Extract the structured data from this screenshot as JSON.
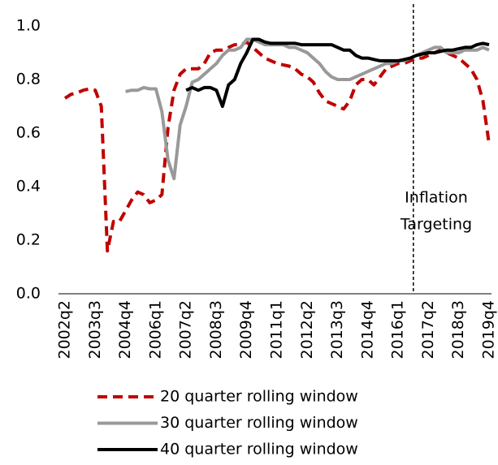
{
  "chart_data": {
    "type": "line",
    "categories": [
      "2002q2",
      null,
      null,
      null,
      null,
      "2003q3",
      null,
      null,
      null,
      null,
      "2004q4",
      null,
      null,
      null,
      null,
      "2006q1",
      null,
      null,
      null,
      null,
      "2007q2",
      null,
      null,
      null,
      null,
      "2008q3",
      null,
      null,
      null,
      null,
      "2009q4",
      null,
      null,
      null,
      null,
      "2011q1",
      null,
      null,
      null,
      null,
      "2012q2",
      null,
      null,
      null,
      null,
      "2013q3",
      null,
      null,
      null,
      null,
      "2014q4",
      null,
      null,
      null,
      null,
      "2016q1",
      null,
      null,
      null,
      null,
      "2017q2",
      null,
      null,
      null,
      null,
      "2018q3",
      null,
      null,
      null,
      null,
      "2019q4"
    ],
    "series": [
      {
        "name": "20 quarter rolling window",
        "color": "#c00000",
        "dashed": true,
        "values": [
          0.73,
          0.745,
          0.75,
          0.76,
          0.765,
          0.76,
          0.7,
          0.16,
          0.27,
          0.27,
          0.31,
          0.35,
          0.38,
          0.37,
          0.34,
          0.35,
          0.37,
          0.62,
          0.76,
          0.82,
          0.84,
          0.84,
          0.84,
          0.86,
          0.9,
          0.91,
          0.91,
          0.92,
          0.93,
          0.93,
          0.94,
          0.92,
          0.9,
          0.88,
          0.87,
          0.86,
          0.855,
          0.85,
          0.84,
          0.82,
          0.81,
          0.79,
          0.75,
          0.72,
          0.71,
          0.7,
          0.69,
          0.72,
          0.78,
          0.8,
          0.8,
          0.78,
          0.81,
          0.84,
          0.85,
          0.86,
          0.86,
          0.87,
          0.88,
          0.88,
          0.89,
          0.9,
          0.91,
          0.9,
          0.89,
          0.88,
          0.86,
          0.84,
          0.8,
          0.72,
          0.56
        ]
      },
      {
        "name": "30 quarter rolling window",
        "color": "#999999",
        "dashed": false,
        "values": [
          null,
          null,
          null,
          null,
          null,
          null,
          null,
          null,
          null,
          null,
          0.755,
          0.76,
          0.76,
          0.77,
          0.765,
          0.765,
          0.68,
          0.5,
          0.43,
          0.63,
          0.7,
          0.79,
          0.8,
          0.82,
          0.84,
          0.86,
          0.89,
          0.91,
          0.91,
          0.92,
          0.95,
          0.95,
          0.94,
          0.93,
          0.93,
          0.93,
          0.93,
          0.92,
          0.92,
          0.91,
          0.9,
          0.88,
          0.86,
          0.83,
          0.81,
          0.8,
          0.8,
          0.8,
          0.81,
          0.82,
          0.83,
          0.84,
          0.85,
          0.86,
          0.86,
          0.87,
          0.87,
          0.88,
          0.89,
          0.9,
          0.91,
          0.92,
          0.92,
          0.9,
          0.9,
          0.9,
          0.91,
          0.91,
          0.91,
          0.92,
          0.91
        ]
      },
      {
        "name": "40 quarter rolling window",
        "color": "#000000",
        "dashed": false,
        "values": [
          null,
          null,
          null,
          null,
          null,
          null,
          null,
          null,
          null,
          null,
          null,
          null,
          null,
          null,
          null,
          null,
          null,
          null,
          null,
          null,
          0.76,
          0.77,
          0.76,
          0.77,
          0.77,
          0.76,
          0.7,
          0.78,
          0.8,
          0.86,
          0.9,
          0.95,
          0.95,
          0.94,
          0.935,
          0.935,
          0.935,
          0.935,
          0.935,
          0.93,
          0.93,
          0.93,
          0.93,
          0.93,
          0.93,
          0.92,
          0.91,
          0.91,
          0.89,
          0.88,
          0.88,
          0.875,
          0.87,
          0.87,
          0.87,
          0.87,
          0.875,
          0.88,
          0.89,
          0.895,
          0.9,
          0.9,
          0.905,
          0.91,
          0.91,
          0.915,
          0.92,
          0.92,
          0.93,
          0.935,
          0.93
        ]
      }
    ],
    "ylim": [
      0,
      1.0
    ],
    "yticks": [
      {
        "value": 0,
        "label": "0.0"
      },
      0.2,
      0.4,
      0.6,
      0.8,
      {
        "value": 1.0,
        "label": "1.0"
      }
    ],
    "annotation": {
      "lines": [
        "Inflation",
        "Targeting"
      ],
      "x_index": 57.5
    }
  }
}
